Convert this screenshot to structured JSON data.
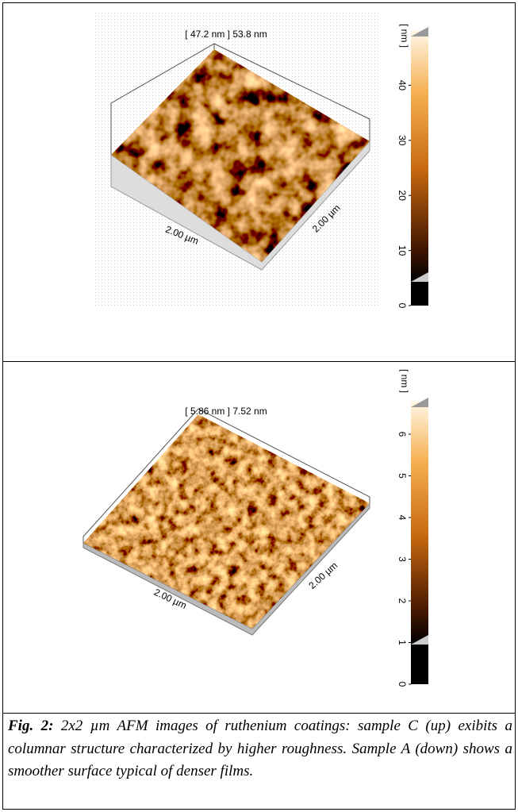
{
  "panels": [
    {
      "range_label": "[ 47.2 nm ] 53.8 nm",
      "axis_labels": [
        "2.00 µm",
        "2.00 µm"
      ],
      "unit": "[ nm ]",
      "colorbar": {
        "ticks": [
          0,
          10,
          20,
          30,
          40
        ],
        "lim": [
          0,
          50
        ]
      }
    },
    {
      "range_label": "[ 5.86 nm ] 7.52 nm",
      "axis_labels": [
        "2.00 µm",
        "2.00 µm"
      ],
      "unit": "[ nm ]",
      "colorbar": {
        "ticks": [
          0,
          1,
          2,
          3,
          4,
          5,
          6
        ],
        "lim": [
          0,
          6.8
        ]
      }
    }
  ],
  "caption": {
    "label": "Fig. 2:",
    "text": "2x2 µm AFM images of  ruthenium coatings: sample C (up) exibits a columnar structure characterized by higher roughness. Sample A (down) shows a smoother surface typical of denser films."
  }
}
